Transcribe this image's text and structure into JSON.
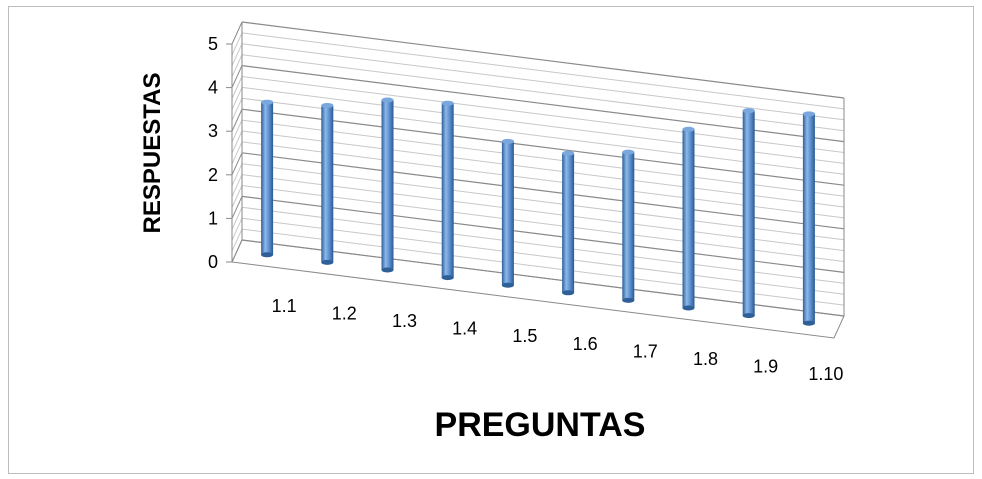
{
  "chart_data": {
    "type": "bar",
    "style": "3d-cylinder",
    "categories": [
      "1.1",
      "1.2",
      "1.3",
      "1.4",
      "1.5",
      "1.6",
      "1.7",
      "1.8",
      "1.9",
      "1.10"
    ],
    "values": [
      3.5,
      3.6,
      3.9,
      4.0,
      3.3,
      3.2,
      3.4,
      4.1,
      4.7,
      4.8
    ],
    "xlabel": "PREGUNTAS",
    "ylabel": "RESPUESTAS",
    "yticks": [
      "0",
      "1",
      "2",
      "3",
      "4",
      "5"
    ],
    "ylim": [
      0,
      5
    ],
    "grid": true,
    "legend": "none",
    "colors": {
      "bar": "#4f86c6",
      "grid": "#9a9a9a"
    }
  }
}
